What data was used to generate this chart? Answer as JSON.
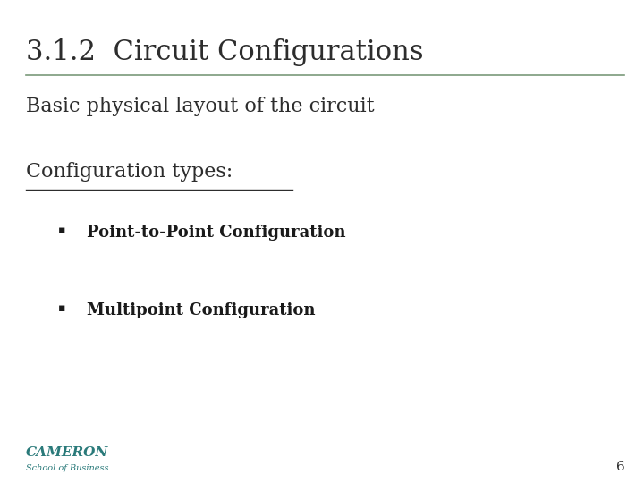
{
  "title": "3.1.2  Circuit Configurations",
  "title_color": "#2d2d2d",
  "title_fontsize": 22,
  "line_color": "#7a9a7a",
  "subtitle": "Basic physical layout of the circuit",
  "subtitle_fontsize": 16,
  "subtitle_color": "#2d2d2d",
  "section_label": "Configuration types:",
  "section_fontsize": 16,
  "section_color": "#2d2d2d",
  "bullet_fontsize": 13,
  "bullet_color": "#1a1a1a",
  "bullet1_text": "Point-to-Point Configuration",
  "bullet2_text": "Multipoint Configuration",
  "cameron_text": "CAMERON",
  "cameron_sub": "School of Business",
  "cameron_color": "#2a7a7a",
  "page_number": "6",
  "bg_color": "#ffffff"
}
